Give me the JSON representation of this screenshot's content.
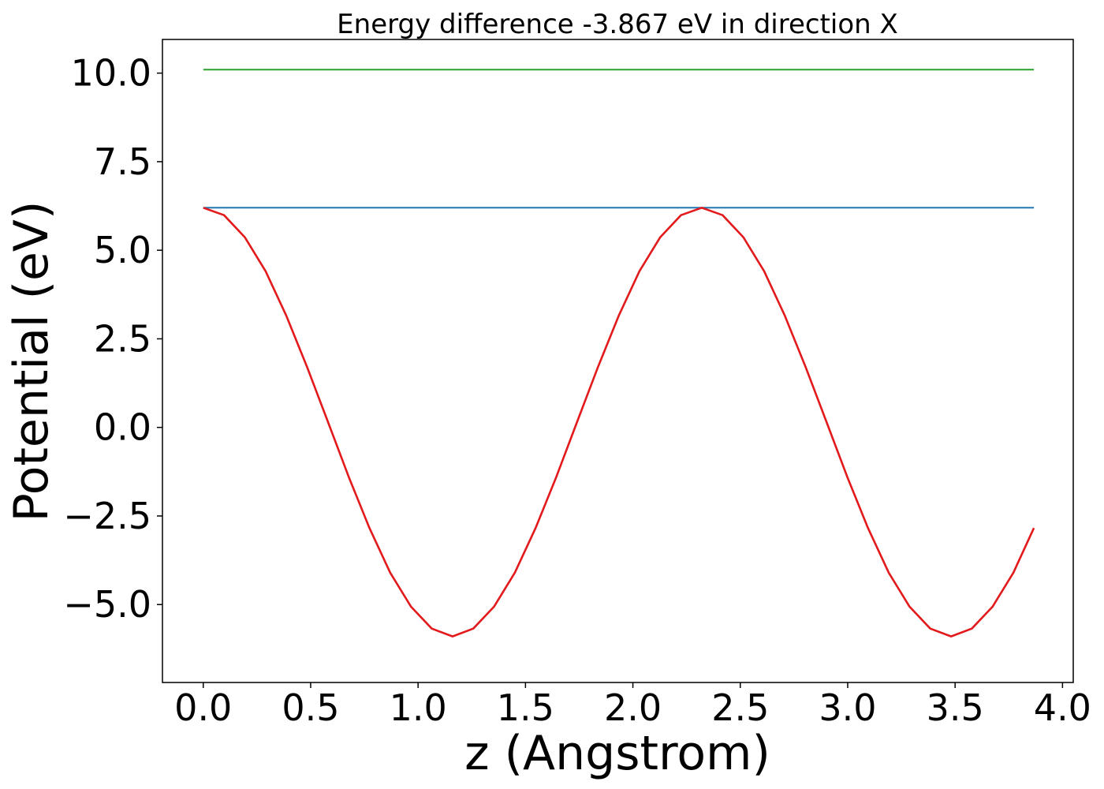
{
  "chart_data": {
    "type": "line",
    "title": "Energy difference -3.867 eV in direction X",
    "xlabel": "z (Angstrom)",
    "ylabel": "Potential (eV)",
    "xlim": [
      -0.19,
      4.05
    ],
    "ylim": [
      -7.2,
      10.95
    ],
    "grid": false,
    "x_ticks": [
      0.0,
      0.5,
      1.0,
      1.5,
      2.0,
      2.5,
      3.0,
      3.5,
      4.0
    ],
    "x_tick_labels": [
      "0.0",
      "0.5",
      "1.0",
      "1.5",
      "2.0",
      "2.5",
      "3.0",
      "3.5",
      "4.0"
    ],
    "y_ticks": [
      -5.0,
      -2.5,
      0.0,
      2.5,
      5.0,
      7.5,
      10.0
    ],
    "y_tick_labels": [
      "−5.0",
      "−2.5",
      "0.0",
      "2.5",
      "5.0",
      "7.5",
      "10.0"
    ],
    "series": [
      {
        "color": "#2ca02c",
        "x": [
          0.0,
          3.867
        ],
        "y": [
          10.1,
          10.1
        ]
      },
      {
        "color": "#1f77b4",
        "x": [
          0.0,
          3.867
        ],
        "y": [
          6.2,
          6.2
        ]
      },
      {
        "color": "#e31a1c",
        "x": [
          0.0,
          0.0967,
          0.1934,
          0.2901,
          0.3868,
          0.4835,
          0.5802,
          0.6769,
          0.7736,
          0.8703,
          0.967,
          1.0637,
          1.1604,
          1.2571,
          1.3538,
          1.4505,
          1.5472,
          1.6439,
          1.7406,
          1.8373,
          1.934,
          2.0307,
          2.1274,
          2.2241,
          2.3208,
          2.4175,
          2.5142,
          2.6109,
          2.7076,
          2.8043,
          2.901,
          2.9977,
          3.0944,
          3.1911,
          3.2878,
          3.3845,
          3.4812,
          3.5779,
          3.6746,
          3.7713,
          3.867
        ],
        "y": [
          6.2,
          5.99,
          5.37,
          4.41,
          3.15,
          1.7,
          0.16,
          -1.39,
          -2.84,
          -4.1,
          -5.06,
          -5.68,
          -5.9,
          -5.68,
          -5.06,
          -4.1,
          -2.84,
          -1.39,
          0.16,
          1.7,
          3.15,
          4.41,
          5.37,
          5.99,
          6.2,
          5.99,
          5.37,
          4.41,
          3.15,
          1.7,
          0.16,
          -1.39,
          -2.84,
          -4.1,
          -5.06,
          -5.68,
          -5.9,
          -5.68,
          -5.06,
          -4.1,
          -2.84
        ]
      }
    ]
  }
}
